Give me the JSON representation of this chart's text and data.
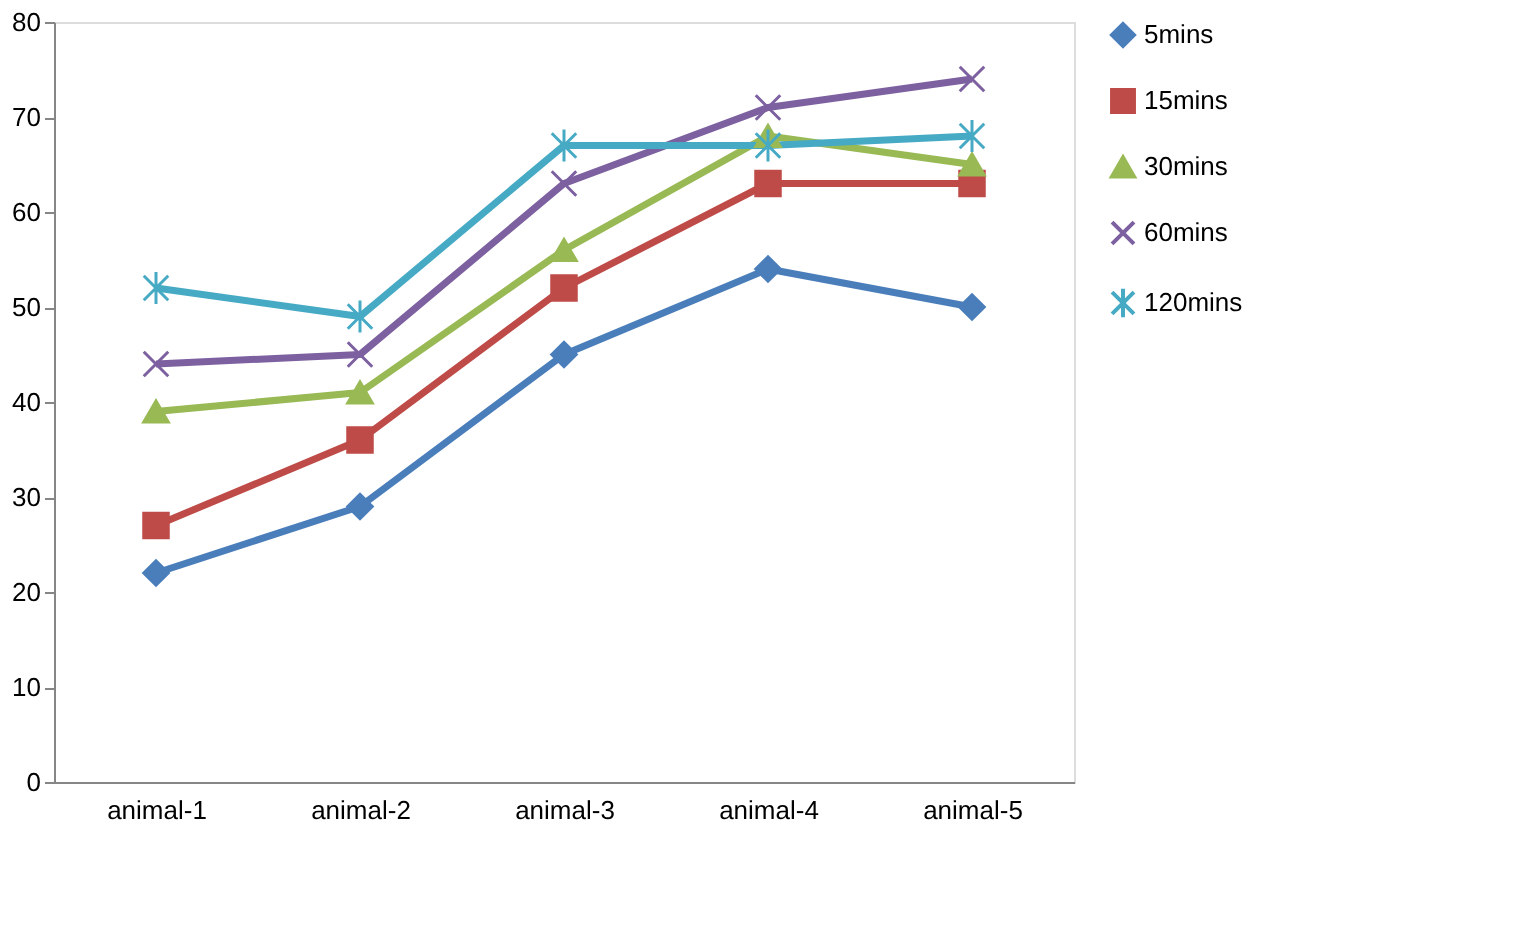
{
  "chart_data": {
    "type": "line",
    "categories": [
      "animal-1",
      "animal-2",
      "animal-3",
      "animal-4",
      "animal-5"
    ],
    "series": [
      {
        "name": "5mins",
        "color": "#4a7ebb",
        "marker": "diamond",
        "values": [
          22,
          29,
          45,
          54,
          50
        ]
      },
      {
        "name": "15mins",
        "color": "#be4b48",
        "marker": "square",
        "values": [
          27,
          36,
          52,
          63,
          63
        ]
      },
      {
        "name": "30mins",
        "color": "#98b954",
        "marker": "triangle",
        "values": [
          39,
          41,
          56,
          68,
          65
        ]
      },
      {
        "name": "60mins",
        "color": "#7d60a0",
        "marker": "cross",
        "values": [
          44,
          45,
          63,
          71,
          74
        ]
      },
      {
        "name": "120mins",
        "color": "#46aac5",
        "marker": "cross",
        "values": [
          52,
          49,
          67,
          67,
          68
        ]
      }
    ],
    "ylim": [
      0,
      80
    ],
    "yticks": [
      0,
      10,
      20,
      30,
      40,
      50,
      60,
      70,
      80
    ],
    "grid": false,
    "legend": "right",
    "line_style": "solid"
  }
}
